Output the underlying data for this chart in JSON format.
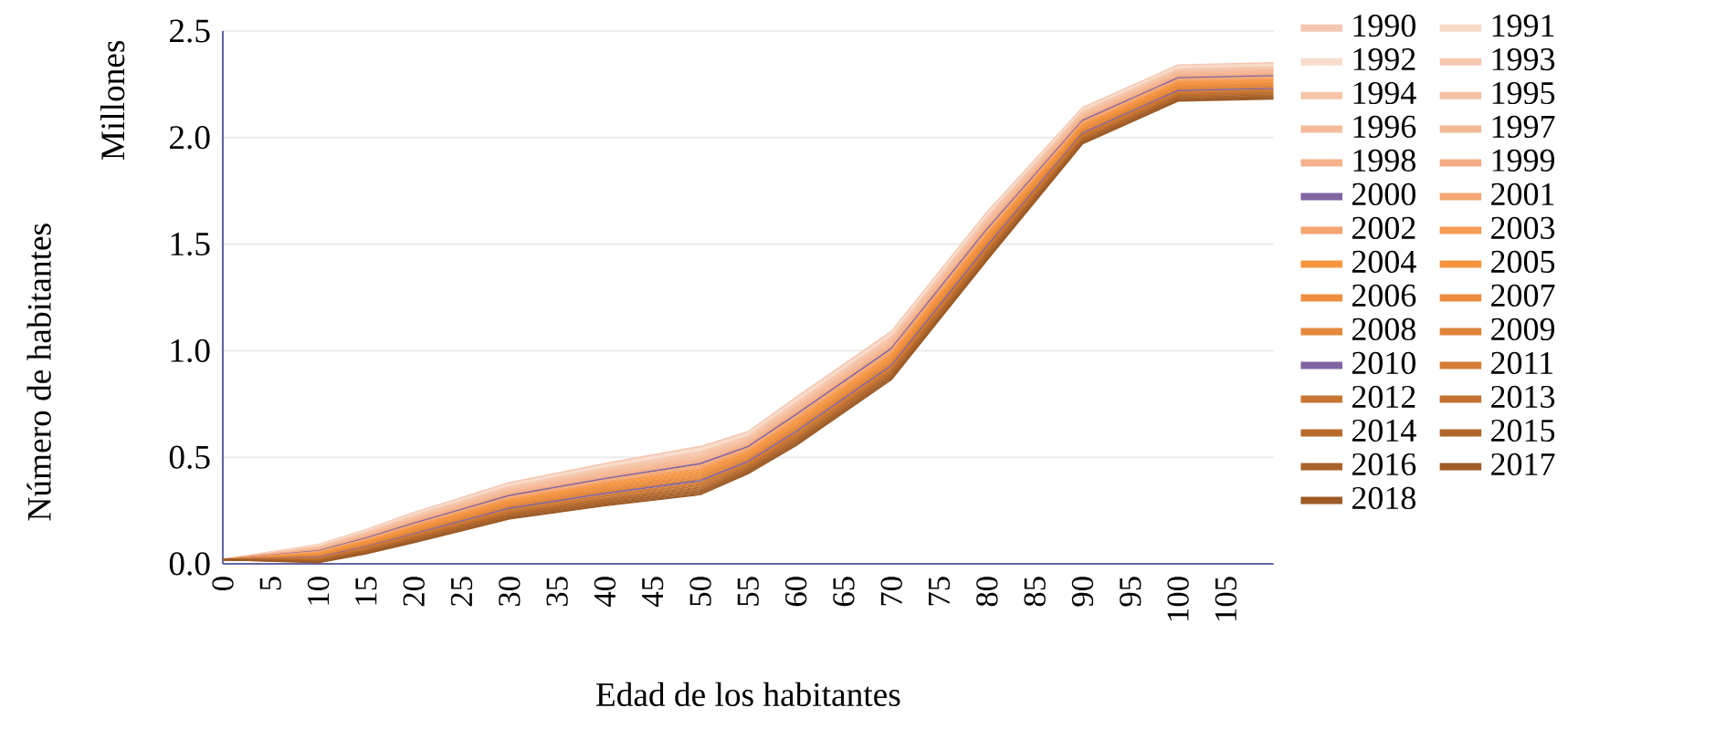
{
  "chart_data": {
    "type": "line",
    "xlabel": "Edad de los habitantes",
    "ylabel": "Número de habitantes",
    "annotations": [
      "Millones"
    ],
    "x": [
      0,
      10,
      15,
      20,
      30,
      40,
      50,
      55,
      60,
      70,
      80,
      90,
      100,
      110
    ],
    "xlim": [
      0,
      110
    ],
    "xticks": [
      0,
      5,
      10,
      15,
      20,
      25,
      30,
      35,
      40,
      45,
      50,
      55,
      60,
      65,
      70,
      75,
      80,
      85,
      90,
      95,
      100,
      105
    ],
    "ylim": [
      0,
      2.5
    ],
    "yticks": [
      {
        "value": 0,
        "label": "0.0"
      },
      {
        "value": 0.5,
        "label": "0.5"
      },
      {
        "value": 1,
        "label": "1.0"
      },
      {
        "value": 1.5,
        "label": "1.5"
      },
      {
        "value": 2,
        "label": "2.0"
      },
      {
        "value": 2.5,
        "label": "2.5"
      }
    ],
    "grid": "y",
    "legend": "right",
    "series": [
      {
        "name": "1990",
        "color": "#f4c7b0",
        "values": [
          0.02,
          0.09,
          0.16,
          0.24,
          0.38,
          0.47,
          0.55,
          0.62,
          0.78,
          1.09,
          1.65,
          2.14,
          2.34,
          2.35
        ]
      },
      {
        "name": "1991",
        "color": "#f8d9c8",
        "values": [
          0.02,
          0.087,
          0.156,
          0.235,
          0.374,
          0.463,
          0.542,
          0.613,
          0.772,
          1.082,
          1.642,
          2.134,
          2.334,
          2.344
        ]
      },
      {
        "name": "1992",
        "color": "#f8dccc",
        "values": [
          0.02,
          0.084,
          0.152,
          0.23,
          0.368,
          0.456,
          0.534,
          0.606,
          0.764,
          1.074,
          1.634,
          2.128,
          2.328,
          2.338
        ]
      },
      {
        "name": "1993",
        "color": "#f5c8af",
        "values": [
          0.02,
          0.081,
          0.148,
          0.225,
          0.362,
          0.449,
          0.526,
          0.599,
          0.756,
          1.066,
          1.626,
          2.122,
          2.322,
          2.332
        ]
      },
      {
        "name": "1994",
        "color": "#f6c5a9",
        "values": [
          0.02,
          0.078,
          0.144,
          0.22,
          0.356,
          0.442,
          0.518,
          0.592,
          0.748,
          1.058,
          1.618,
          2.116,
          2.316,
          2.326
        ]
      },
      {
        "name": "1995",
        "color": "#f5c0a2",
        "values": [
          0.02,
          0.075,
          0.14,
          0.215,
          0.35,
          0.435,
          0.51,
          0.585,
          0.74,
          1.05,
          1.61,
          2.11,
          2.31,
          2.32
        ]
      },
      {
        "name": "1996",
        "color": "#f5bc9b",
        "values": [
          0.02,
          0.072,
          0.136,
          0.21,
          0.344,
          0.428,
          0.502,
          0.578,
          0.732,
          1.042,
          1.602,
          2.104,
          2.304,
          2.314
        ]
      },
      {
        "name": "1997",
        "color": "#f5b895",
        "values": [
          0.02,
          0.069,
          0.132,
          0.205,
          0.338,
          0.421,
          0.494,
          0.571,
          0.724,
          1.034,
          1.594,
          2.098,
          2.298,
          2.308
        ]
      },
      {
        "name": "1998",
        "color": "#f4b28c",
        "values": [
          0.02,
          0.066,
          0.128,
          0.2,
          0.332,
          0.414,
          0.486,
          0.564,
          0.716,
          1.026,
          1.586,
          2.092,
          2.292,
          2.302
        ]
      },
      {
        "name": "1999",
        "color": "#f4ad85",
        "values": [
          0.02,
          0.063,
          0.124,
          0.195,
          0.326,
          0.407,
          0.478,
          0.557,
          0.708,
          1.018,
          1.578,
          2.086,
          2.286,
          2.296
        ]
      },
      {
        "name": "2000",
        "color": "#8064a2",
        "values": [
          0.02,
          0.06,
          0.12,
          0.19,
          0.32,
          0.4,
          0.47,
          0.55,
          0.7,
          1.01,
          1.57,
          2.08,
          2.28,
          2.29
        ]
      },
      {
        "name": "2001",
        "color": "#f4a774",
        "values": [
          0.02,
          0.057,
          0.116,
          0.185,
          0.314,
          0.393,
          0.462,
          0.543,
          0.692,
          1.002,
          1.562,
          2.074,
          2.274,
          2.284
        ]
      },
      {
        "name": "2002",
        "color": "#f4a46e",
        "values": [
          0.02,
          0.054,
          0.112,
          0.18,
          0.308,
          0.386,
          0.454,
          0.536,
          0.684,
          0.994,
          1.554,
          2.068,
          2.268,
          2.278
        ]
      },
      {
        "name": "2003",
        "color": "#f59c55",
        "values": [
          0.02,
          0.051,
          0.108,
          0.175,
          0.302,
          0.379,
          0.446,
          0.529,
          0.676,
          0.986,
          1.546,
          2.062,
          2.262,
          2.272
        ]
      },
      {
        "name": "2004",
        "color": "#f6953e",
        "values": [
          0.02,
          0.048,
          0.104,
          0.17,
          0.296,
          0.372,
          0.438,
          0.522,
          0.668,
          0.978,
          1.538,
          2.056,
          2.256,
          2.266
        ]
      },
      {
        "name": "2005",
        "color": "#f39440",
        "values": [
          0.02,
          0.045,
          0.1,
          0.165,
          0.29,
          0.365,
          0.43,
          0.515,
          0.66,
          0.97,
          1.53,
          2.05,
          2.25,
          2.26
        ]
      },
      {
        "name": "2006",
        "color": "#ee9040",
        "values": [
          0.02,
          0.042,
          0.096,
          0.16,
          0.284,
          0.358,
          0.422,
          0.508,
          0.652,
          0.962,
          1.522,
          2.044,
          2.244,
          2.254
        ]
      },
      {
        "name": "2007",
        "color": "#ea8c3e",
        "values": [
          0.02,
          0.039,
          0.092,
          0.155,
          0.278,
          0.351,
          0.414,
          0.501,
          0.644,
          0.954,
          1.514,
          2.038,
          2.238,
          2.248
        ]
      },
      {
        "name": "2008",
        "color": "#e4883b",
        "values": [
          0.02,
          0.036,
          0.088,
          0.15,
          0.272,
          0.344,
          0.406,
          0.494,
          0.636,
          0.946,
          1.506,
          2.032,
          2.232,
          2.242
        ]
      },
      {
        "name": "2009",
        "color": "#df8438",
        "values": [
          0.02,
          0.033,
          0.084,
          0.145,
          0.266,
          0.337,
          0.398,
          0.487,
          0.628,
          0.938,
          1.498,
          2.026,
          2.226,
          2.236
        ]
      },
      {
        "name": "2010",
        "color": "#8064a2",
        "values": [
          0.02,
          0.03,
          0.08,
          0.14,
          0.26,
          0.33,
          0.39,
          0.48,
          0.62,
          0.93,
          1.49,
          2.02,
          2.22,
          2.23
        ]
      },
      {
        "name": "2011",
        "color": "#d47c35",
        "values": [
          0.02,
          0.027,
          0.076,
          0.135,
          0.254,
          0.323,
          0.382,
          0.473,
          0.612,
          0.922,
          1.482,
          2.014,
          2.214,
          2.224
        ]
      },
      {
        "name": "2012",
        "color": "#c87532",
        "values": [
          0.02,
          0.024,
          0.072,
          0.13,
          0.248,
          0.316,
          0.374,
          0.466,
          0.604,
          0.914,
          1.474,
          2.008,
          2.208,
          2.218
        ]
      },
      {
        "name": "2013",
        "color": "#c3722f",
        "values": [
          0.02,
          0.021,
          0.068,
          0.125,
          0.242,
          0.309,
          0.366,
          0.459,
          0.596,
          0.906,
          1.466,
          2.002,
          2.202,
          2.212
        ]
      },
      {
        "name": "2014",
        "color": "#b96b2d",
        "values": [
          0.02,
          0.018,
          0.064,
          0.12,
          0.236,
          0.302,
          0.358,
          0.452,
          0.588,
          0.898,
          1.458,
          1.996,
          2.196,
          2.206
        ]
      },
      {
        "name": "2015",
        "color": "#b0662b",
        "values": [
          0.02,
          0.015,
          0.06,
          0.115,
          0.23,
          0.295,
          0.35,
          0.445,
          0.58,
          0.89,
          1.45,
          1.99,
          2.19,
          2.2
        ]
      },
      {
        "name": "2016",
        "color": "#a9622a",
        "values": [
          0.02,
          0.012,
          0.056,
          0.11,
          0.224,
          0.288,
          0.342,
          0.438,
          0.572,
          0.882,
          1.442,
          1.984,
          2.184,
          2.194
        ]
      },
      {
        "name": "2017",
        "color": "#a05d28",
        "values": [
          0.02,
          0.009,
          0.052,
          0.105,
          0.218,
          0.281,
          0.334,
          0.431,
          0.564,
          0.874,
          1.434,
          1.978,
          2.178,
          2.188
        ]
      },
      {
        "name": "2018",
        "color": "#9c5a26",
        "values": [
          0.02,
          0.006,
          0.048,
          0.1,
          0.212,
          0.274,
          0.326,
          0.424,
          0.556,
          0.866,
          1.426,
          1.972,
          2.172,
          2.182
        ]
      }
    ]
  }
}
